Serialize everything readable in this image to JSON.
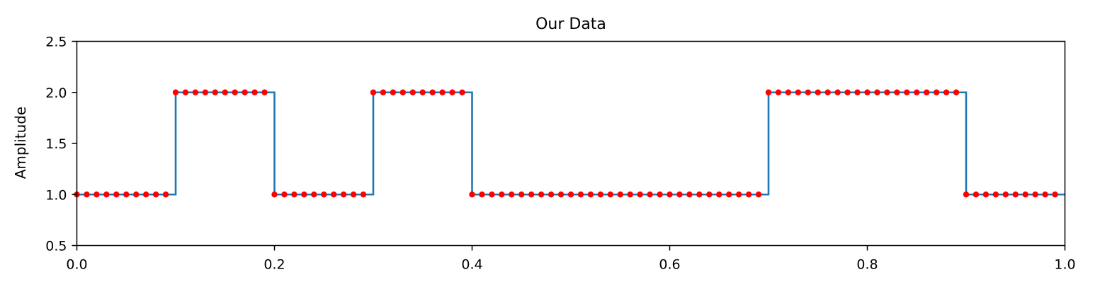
{
  "chart_data": {
    "type": "line",
    "title": "Our Data",
    "xlabel": "",
    "ylabel": "Amplitude",
    "xlim": [
      0.0,
      1.0
    ],
    "ylim": [
      0.5,
      2.5
    ],
    "x_ticks": [
      "0.0",
      "0.2",
      "0.4",
      "0.6",
      "0.8",
      "1.0"
    ],
    "y_ticks": [
      "0.5",
      "1.0",
      "1.5",
      "2.0",
      "2.5"
    ],
    "grid": false,
    "legend": "none",
    "colors": {
      "line": "#1f77b4",
      "markers": "#ff0000"
    },
    "series": [
      {
        "style": "step-line",
        "x": [
          0.0,
          0.1,
          0.1,
          0.2,
          0.2,
          0.3,
          0.3,
          0.4,
          0.4,
          0.7,
          0.7,
          0.9,
          0.9,
          1.0
        ],
        "y": [
          1,
          1,
          2,
          2,
          1,
          1,
          2,
          2,
          1,
          1,
          2,
          2,
          1,
          1
        ]
      },
      {
        "style": "markers",
        "x": [
          0.0,
          0.01,
          0.02,
          0.03,
          0.04,
          0.05,
          0.06,
          0.07,
          0.08,
          0.09,
          0.1,
          0.11,
          0.12,
          0.13,
          0.14,
          0.15,
          0.16,
          0.17,
          0.18,
          0.19,
          0.2,
          0.21,
          0.22,
          0.23,
          0.24,
          0.25,
          0.26,
          0.27,
          0.28,
          0.29,
          0.3,
          0.31,
          0.32,
          0.33,
          0.34,
          0.35,
          0.36,
          0.37,
          0.38,
          0.39,
          0.4,
          0.41,
          0.42,
          0.43,
          0.44,
          0.45,
          0.46,
          0.47,
          0.48,
          0.49,
          0.5,
          0.51,
          0.52,
          0.53,
          0.54,
          0.55,
          0.56,
          0.57,
          0.58,
          0.59,
          0.6,
          0.61,
          0.62,
          0.63,
          0.64,
          0.65,
          0.66,
          0.67,
          0.68,
          0.69,
          0.7,
          0.71,
          0.72,
          0.73,
          0.74,
          0.75,
          0.76,
          0.77,
          0.78,
          0.79,
          0.8,
          0.81,
          0.82,
          0.83,
          0.84,
          0.85,
          0.86,
          0.87,
          0.88,
          0.89,
          0.9,
          0.91,
          0.92,
          0.93,
          0.94,
          0.95,
          0.96,
          0.97,
          0.98,
          0.99
        ],
        "y": [
          1,
          1,
          1,
          1,
          1,
          1,
          1,
          1,
          1,
          1,
          2,
          2,
          2,
          2,
          2,
          2,
          2,
          2,
          2,
          2,
          1,
          1,
          1,
          1,
          1,
          1,
          1,
          1,
          1,
          1,
          2,
          2,
          2,
          2,
          2,
          2,
          2,
          2,
          2,
          2,
          1,
          1,
          1,
          1,
          1,
          1,
          1,
          1,
          1,
          1,
          1,
          1,
          1,
          1,
          1,
          1,
          1,
          1,
          1,
          1,
          1,
          1,
          1,
          1,
          1,
          1,
          1,
          1,
          1,
          1,
          2,
          2,
          2,
          2,
          2,
          2,
          2,
          2,
          2,
          2,
          2,
          2,
          2,
          2,
          2,
          2,
          2,
          2,
          2,
          2,
          1,
          1,
          1,
          1,
          1,
          1,
          1,
          1,
          1,
          1
        ]
      }
    ]
  }
}
